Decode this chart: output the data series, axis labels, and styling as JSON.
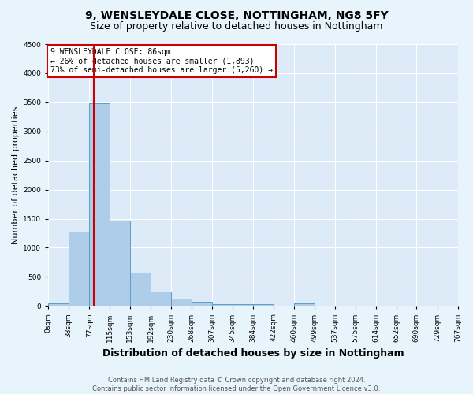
{
  "title": "9, WENSLEYDALE CLOSE, NOTTINGHAM, NG8 5FY",
  "subtitle": "Size of property relative to detached houses in Nottingham",
  "xlabel": "Distribution of detached houses by size in Nottingham",
  "ylabel": "Number of detached properties",
  "footer_line1": "Contains HM Land Registry data © Crown copyright and database right 2024.",
  "footer_line2": "Contains public sector information licensed under the Open Government Licence v3.0.",
  "annotation_line1": "9 WENSLEYDALE CLOSE: 86sqm",
  "annotation_line2": "← 26% of detached houses are smaller (1,893)",
  "annotation_line3": "73% of semi-detached houses are larger (5,260) →",
  "property_size": 86,
  "bar_color": "#aecde8",
  "bar_edge_color": "#5a9fc9",
  "red_line_color": "#cc0000",
  "annotation_box_color": "#ffffff",
  "annotation_box_edge_color": "#cc0000",
  "bin_edges": [
    0,
    38,
    77,
    115,
    153,
    192,
    230,
    268,
    307,
    345,
    384,
    422,
    460,
    499,
    537,
    575,
    614,
    652,
    690,
    729,
    767
  ],
  "bin_labels": [
    "0sqm",
    "38sqm",
    "77sqm",
    "115sqm",
    "153sqm",
    "192sqm",
    "230sqm",
    "268sqm",
    "307sqm",
    "345sqm",
    "384sqm",
    "422sqm",
    "460sqm",
    "499sqm",
    "537sqm",
    "575sqm",
    "614sqm",
    "652sqm",
    "690sqm",
    "729sqm",
    "767sqm"
  ],
  "bar_heights": [
    50,
    1270,
    3480,
    1470,
    570,
    245,
    130,
    65,
    35,
    30,
    35,
    0,
    45,
    0,
    0,
    0,
    0,
    0,
    0,
    0
  ],
  "ylim": [
    0,
    4500
  ],
  "yticks": [
    0,
    500,
    1000,
    1500,
    2000,
    2500,
    3000,
    3500,
    4000,
    4500
  ],
  "background_color": "#e8f4fb",
  "plot_bg_color": "#ddeaf7",
  "title_fontsize": 10,
  "subtitle_fontsize": 9,
  "xlabel_fontsize": 9,
  "ylabel_fontsize": 8,
  "tick_fontsize": 6.5,
  "annotation_fontsize": 7,
  "footer_fontsize": 6
}
